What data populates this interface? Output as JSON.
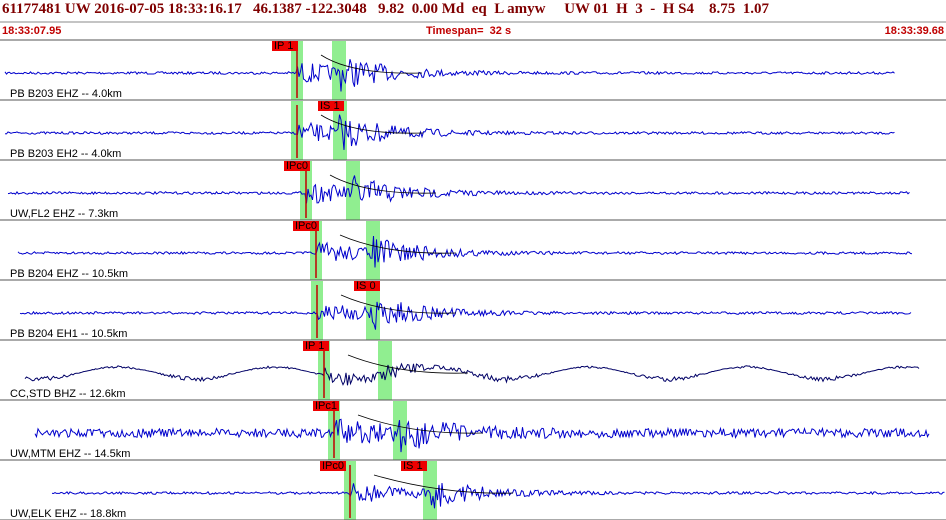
{
  "header": {
    "event": "61177481 UW 2016-07-05 18:33:16.17   46.1387 -122.3048   9.82  0.00 Md  eq  L amyw     UW 01  H  3  -  H S4    8.75  1.07",
    "start_time": "18:33:07.95",
    "timespan": "Timespan=  32 s",
    "end_time": "18:33:39.68"
  },
  "panels": [
    {
      "label": "PB B203 EHZ -- 4.0km",
      "picks": [
        "IP 1"
      ]
    },
    {
      "label": "PB B203 EH2 -- 4.0km",
      "picks": [
        "IS 1"
      ]
    },
    {
      "label": "UW,FL2 EHZ -- 7.3km",
      "picks": [
        "IPc0"
      ]
    },
    {
      "label": "PB B204 EHZ -- 10.5km",
      "picks": [
        "IPc0"
      ]
    },
    {
      "label": "PB B204 EH1 -- 10.5km",
      "picks": [
        "IS 0"
      ]
    },
    {
      "label": "CC,STD BHZ -- 12.6km",
      "picks": [
        "IP 1"
      ]
    },
    {
      "label": "UW,MTM EHZ -- 14.5km",
      "picks": [
        "IPc1"
      ]
    },
    {
      "label": "UW,ELK EHZ -- 18.8km",
      "picks": [
        "IPc0",
        "IS 1"
      ]
    }
  ]
}
